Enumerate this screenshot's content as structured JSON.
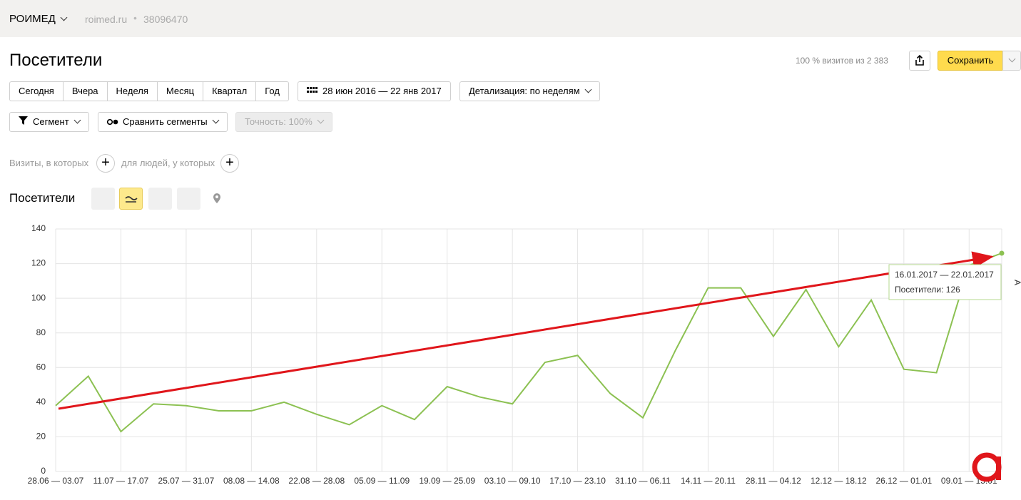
{
  "header": {
    "brand": "РОИМЕД",
    "site": "roimed.ru",
    "counter_id": "38096470"
  },
  "report": {
    "title": "Посетители",
    "visits_info": "100 % визитов из 2 383",
    "save": "Сохранить"
  },
  "controls": {
    "periods": [
      "Сегодня",
      "Вчера",
      "Неделя",
      "Месяц",
      "Квартал",
      "Год"
    ],
    "date_range": "28 июн 2016 — 22 янв 2017",
    "detail": "Детализация: по неделям",
    "segment": "Сегмент",
    "compare": "Сравнить сегменты",
    "accuracy": "Точность: 100%",
    "filter_visits": "Визиты, в которых",
    "filter_people": "для людей, у которых"
  },
  "chart_section": {
    "title": "Посетители"
  },
  "chart_data": {
    "type": "line",
    "categories": [
      "28.06 — 03.07",
      null,
      "11.07 — 17.07",
      null,
      "25.07 — 31.07",
      null,
      "08.08 — 14.08",
      null,
      "22.08 — 28.08",
      null,
      "05.09 — 11.09",
      null,
      "19.09 — 25.09",
      null,
      "03.10 — 09.10",
      null,
      "17.10 — 23.10",
      null,
      "31.10 — 06.11",
      null,
      "14.11 — 20.11",
      null,
      "28.11 — 04.12",
      null,
      "12.12 — 18.12",
      null,
      "26.12 — 01.01",
      null,
      "09.01 — 15.01",
      null
    ],
    "values": [
      38,
      55,
      23,
      39,
      38,
      35,
      35,
      40,
      33,
      27,
      38,
      30,
      49,
      43,
      39,
      63,
      67,
      45,
      31,
      70,
      106,
      106,
      78,
      105,
      72,
      99,
      59,
      57,
      119,
      126
    ],
    "color": "#8cc152",
    "ylim": [
      0,
      140
    ],
    "yticks": [
      0,
      20,
      40,
      60,
      80,
      100,
      120,
      140
    ],
    "grid": true,
    "tooltip": {
      "title": "16.01.2017 — 22.01.2017",
      "text": "Посетители: 126"
    }
  }
}
